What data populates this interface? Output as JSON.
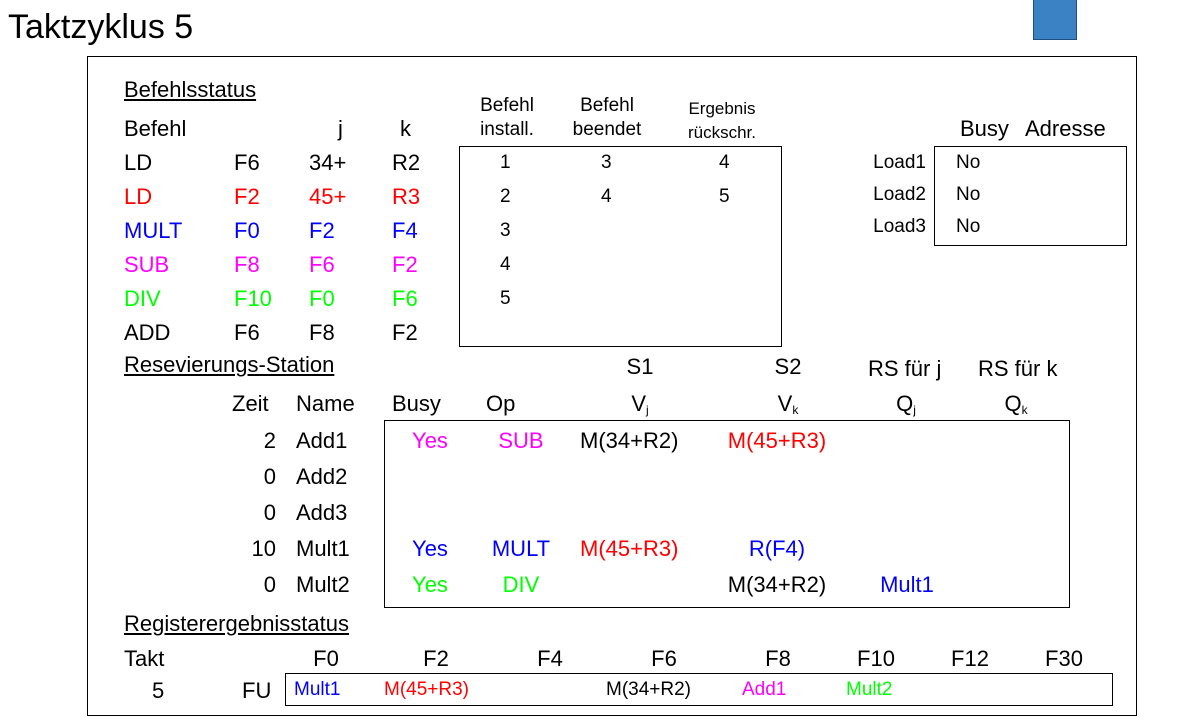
{
  "title": "Taktzyklus 5",
  "colors": {
    "black": "#000000",
    "red": "#ff0000",
    "blue": "#0000ff",
    "magenta": "#ff00ff",
    "green": "#00ff00",
    "button": "#3a82c4"
  },
  "befehlsstatus": {
    "heading": "Befehlsstatus",
    "col_befehl": "Befehl",
    "col_j": "j",
    "col_k": "k",
    "col_install_1": "Befehl",
    "col_install_2": "install.",
    "col_beendet_1": "Befehl",
    "col_beendet_2": "beendet",
    "col_rueck_1": "Ergebnis",
    "col_rueck_2": "rückschr.",
    "rows": [
      {
        "op": "LD",
        "dst": "F6",
        "j": "34+",
        "k": "R2",
        "install": "1",
        "beendet": "3",
        "rueck": "4",
        "color": "black"
      },
      {
        "op": "LD",
        "dst": "F2",
        "j": "45+",
        "k": "R3",
        "install": "2",
        "beendet": "4",
        "rueck": "5",
        "color": "red"
      },
      {
        "op": "MULT",
        "dst": "F0",
        "j": "F2",
        "k": "F4",
        "install": "3",
        "beendet": "",
        "rueck": "",
        "color": "blue"
      },
      {
        "op": "SUB",
        "dst": "F8",
        "j": "F6",
        "k": "F2",
        "install": "4",
        "beendet": "",
        "rueck": "",
        "color": "magenta"
      },
      {
        "op": "DIV",
        "dst": "F10",
        "j": "F0",
        "k": "F6",
        "install": "5",
        "beendet": "",
        "rueck": "",
        "color": "green"
      },
      {
        "op": "ADD",
        "dst": "F6",
        "j": "F8",
        "k": "F2",
        "install": "",
        "beendet": "",
        "rueck": "",
        "color": "black"
      }
    ]
  },
  "load": {
    "col_busy": "Busy",
    "col_adresse": "Adresse",
    "rows": [
      {
        "name": "Load1",
        "busy": "No",
        "adresse": ""
      },
      {
        "name": "Load2",
        "busy": "No",
        "adresse": ""
      },
      {
        "name": "Load3",
        "busy": "No",
        "adresse": ""
      }
    ]
  },
  "rs": {
    "heading": "Resevierungs-Station",
    "col_s1": "S1",
    "col_s2": "S2",
    "col_rsj": "RS für j",
    "col_rsk": "RS für k",
    "col_zeit": "Zeit",
    "col_name": "Name",
    "col_busy": "Busy",
    "col_op": "Op",
    "col_vj": "V",
    "col_vj_sub": "j",
    "col_vk": "V",
    "col_vk_sub": "k",
    "col_qj": "Q",
    "col_qj_sub": "j",
    "col_qk": "Q",
    "col_qk_sub": "k",
    "rows": [
      {
        "zeit": "2",
        "name": "Add1",
        "busy": "Yes",
        "op": "SUB",
        "vj": "M(34+R2)",
        "vk": "M(45+R3)",
        "qj": "",
        "qk": "",
        "c_busy": "magenta",
        "c_op": "magenta",
        "c_vj": "black",
        "c_vk": "red",
        "c_qj": "black"
      },
      {
        "zeit": "0",
        "name": "Add2",
        "busy": "",
        "op": "",
        "vj": "",
        "vk": "",
        "qj": "",
        "qk": "",
        "c_busy": "black",
        "c_op": "black",
        "c_vj": "black",
        "c_vk": "black",
        "c_qj": "black"
      },
      {
        "zeit": "0",
        "name": "Add3",
        "busy": "",
        "op": "",
        "vj": "",
        "vk": "",
        "qj": "",
        "qk": "",
        "c_busy": "black",
        "c_op": "black",
        "c_vj": "black",
        "c_vk": "black",
        "c_qj": "black"
      },
      {
        "zeit": "10",
        "name": "Mult1",
        "busy": "Yes",
        "op": "MULT",
        "vj": "M(45+R3)",
        "vk": "R(F4)",
        "qj": "",
        "qk": "",
        "c_busy": "blue",
        "c_op": "blue",
        "c_vj": "red",
        "c_vk": "blue",
        "c_qj": "black"
      },
      {
        "zeit": "0",
        "name": "Mult2",
        "busy": "Yes",
        "op": "DIV",
        "vj": "",
        "vk": "M(34+R2)",
        "qj": "Mult1",
        "qk": "",
        "c_busy": "green",
        "c_op": "green",
        "c_vj": "black",
        "c_vk": "black",
        "c_qj": "blue"
      }
    ]
  },
  "register": {
    "heading": "Registerergebnisstatus",
    "takt_label": "Takt",
    "takt_value": "5",
    "fu_label": "FU",
    "registers": [
      {
        "name": "F0",
        "value": "Mult1",
        "color": "blue"
      },
      {
        "name": "F2",
        "value": "M(45+R3)",
        "color": "red"
      },
      {
        "name": "F4",
        "value": "",
        "color": "black"
      },
      {
        "name": "F6",
        "value": "M(34+R2)",
        "color": "black"
      },
      {
        "name": "F8",
        "value": "Add1",
        "color": "magenta"
      },
      {
        "name": "F10",
        "value": "Mult2",
        "color": "green"
      },
      {
        "name": "F12",
        "value": "",
        "color": "black"
      },
      {
        "name": "F30",
        "value": "",
        "color": "black"
      }
    ]
  }
}
